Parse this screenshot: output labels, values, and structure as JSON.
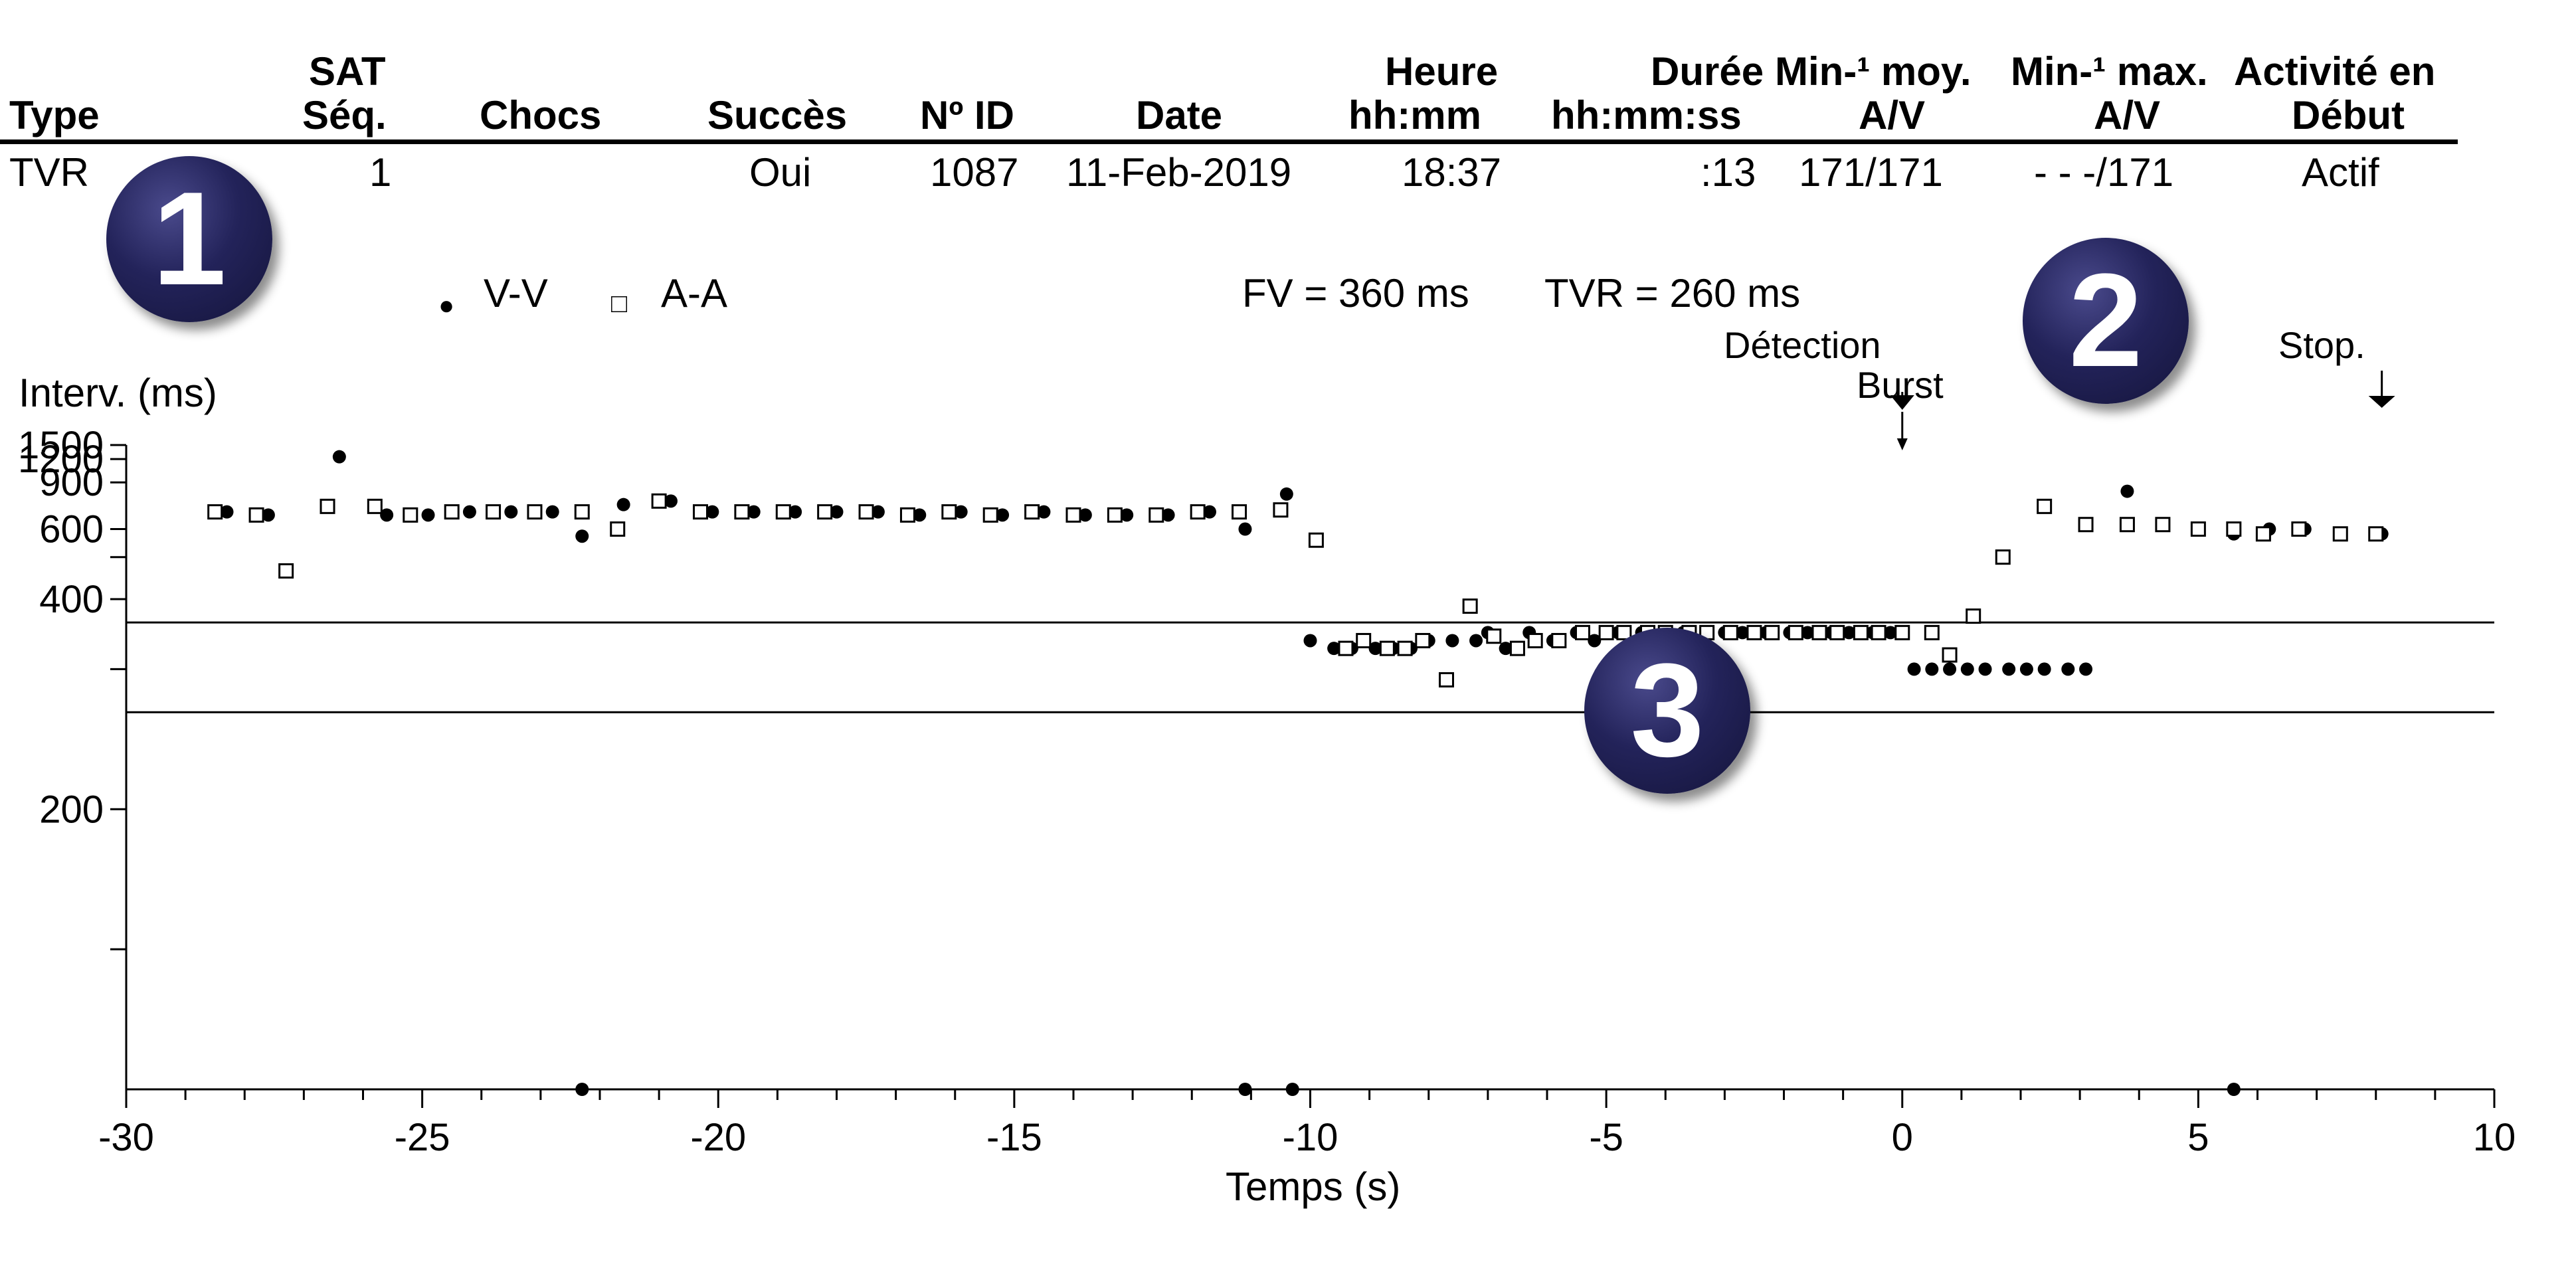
{
  "table": {
    "headers": [
      {
        "line1": "",
        "line2": "Type"
      },
      {
        "line1": "SAT",
        "line2": "Séq."
      },
      {
        "line1": "",
        "line2": "Chocs"
      },
      {
        "line1": "",
        "line2": "Succès"
      },
      {
        "line1": "",
        "line2": "Nº ID"
      },
      {
        "line1": "",
        "line2": "Date"
      },
      {
        "line1": "Heure",
        "line2": "hh:mm"
      },
      {
        "line1": "Durée",
        "line2": "hh:mm:ss"
      },
      {
        "line1": "Min-¹ moy.",
        "line2": "A/V"
      },
      {
        "line1": "Min-¹ max.",
        "line2": "A/V"
      },
      {
        "line1": "Activité en",
        "line2": "Début"
      }
    ],
    "row": [
      "TVR",
      "1",
      "",
      "Oui",
      "1087",
      "11-Feb-2019",
      "18:37",
      ":13",
      "171/171",
      "- - -/171",
      "Actif"
    ]
  },
  "badges": [
    "1",
    "2",
    "3"
  ],
  "legend": {
    "vv": "V-V",
    "aa": "A-A"
  },
  "zones": {
    "fv": "FV = 360 ms",
    "tvr": "TVR = 260 ms"
  },
  "annotations": {
    "detection": "Détection",
    "burst": "Burst",
    "stop": "Stop."
  },
  "colors": {
    "markers": "#000000",
    "badge": "#1e1e50"
  },
  "chart_data": {
    "type": "scatter",
    "title": "",
    "xlabel": "Temps (s)",
    "ylabel": "Interv. (ms)",
    "xlim": [
      -30,
      10
    ],
    "x_ticks": [
      -30,
      -25,
      -20,
      -15,
      -10,
      -5,
      0,
      5,
      10
    ],
    "y_ticks": [
      1500,
      1200,
      900,
      600,
      400,
      200
    ],
    "y_scale": "reciprocal",
    "thresholds_ms": [
      360,
      260
    ],
    "event_markers": [
      {
        "label": "Détection",
        "x": 0
      },
      {
        "label": "Stop.",
        "x": 8.1
      }
    ],
    "series": [
      {
        "name": "V-V",
        "marker": "filled-circle",
        "points": [
          [
            -28.3,
            684
          ],
          [
            -27.6,
            667
          ],
          [
            -26.4,
            1240
          ],
          [
            -25.6,
            667
          ],
          [
            -24.9,
            667
          ],
          [
            -24.2,
            684
          ],
          [
            -23.5,
            684
          ],
          [
            -22.8,
            684
          ],
          [
            -22.3,
            571
          ],
          [
            -21.6,
            727
          ],
          [
            -20.8,
            750
          ],
          [
            -20.1,
            684
          ],
          [
            -19.4,
            684
          ],
          [
            -18.7,
            684
          ],
          [
            -18.0,
            684
          ],
          [
            -17.3,
            684
          ],
          [
            -16.6,
            667
          ],
          [
            -15.9,
            684
          ],
          [
            -15.2,
            667
          ],
          [
            -14.5,
            684
          ],
          [
            -13.8,
            667
          ],
          [
            -13.1,
            667
          ],
          [
            -12.4,
            667
          ],
          [
            -11.7,
            684
          ],
          [
            -11.1,
            600
          ],
          [
            -10.4,
            800
          ],
          [
            -10.0,
            334
          ],
          [
            -9.6,
            324
          ],
          [
            -9.3,
            324
          ],
          [
            -8.9,
            324
          ],
          [
            -8.6,
            324
          ],
          [
            -8.3,
            324
          ],
          [
            -8.0,
            334
          ],
          [
            -7.6,
            334
          ],
          [
            -7.2,
            334
          ],
          [
            -7.0,
            345
          ],
          [
            -6.7,
            324
          ],
          [
            -6.3,
            345
          ],
          [
            -5.9,
            334
          ],
          [
            -5.5,
            345
          ],
          [
            -5.2,
            334
          ],
          [
            -4.8,
            345
          ],
          [
            -4.4,
            345
          ],
          [
            -4.1,
            334
          ],
          [
            -3.7,
            345
          ],
          [
            -3.4,
            334
          ],
          [
            -3.0,
            345
          ],
          [
            -2.7,
            345
          ],
          [
            -2.3,
            345
          ],
          [
            -1.9,
            345
          ],
          [
            -1.6,
            345
          ],
          [
            -1.2,
            345
          ],
          [
            -0.9,
            345
          ],
          [
            -0.5,
            345
          ],
          [
            -0.2,
            345
          ],
          [
            0.2,
            300
          ],
          [
            0.5,
            300
          ],
          [
            0.8,
            300
          ],
          [
            1.1,
            300
          ],
          [
            1.4,
            300
          ],
          [
            1.8,
            300
          ],
          [
            2.1,
            300
          ],
          [
            2.4,
            300
          ],
          [
            2.8,
            300
          ],
          [
            3.1,
            300
          ],
          [
            3.8,
            822
          ],
          [
            4.4,
            620
          ],
          [
            5.0,
            600
          ],
          [
            5.6,
            580
          ],
          [
            6.2,
            600
          ],
          [
            6.8,
            600
          ],
          [
            7.4,
            580
          ],
          [
            8.1,
            580
          ]
        ]
      },
      {
        "name": "A-A",
        "marker": "open-square",
        "points": [
          [
            -28.5,
            684
          ],
          [
            -27.8,
            667
          ],
          [
            -27.3,
            462
          ],
          [
            -26.6,
            716
          ],
          [
            -25.8,
            716
          ],
          [
            -25.2,
            667
          ],
          [
            -24.5,
            684
          ],
          [
            -23.8,
            684
          ],
          [
            -23.1,
            684
          ],
          [
            -22.3,
            684
          ],
          [
            -21.7,
            600
          ],
          [
            -21.0,
            750
          ],
          [
            -20.3,
            684
          ],
          [
            -19.6,
            684
          ],
          [
            -18.9,
            684
          ],
          [
            -18.2,
            684
          ],
          [
            -17.5,
            684
          ],
          [
            -16.8,
            667
          ],
          [
            -16.1,
            684
          ],
          [
            -15.4,
            667
          ],
          [
            -14.7,
            684
          ],
          [
            -14.0,
            667
          ],
          [
            -13.3,
            667
          ],
          [
            -12.6,
            667
          ],
          [
            -11.9,
            684
          ],
          [
            -11.2,
            684
          ],
          [
            -10.5,
            695
          ],
          [
            -9.9,
            556
          ],
          [
            -9.4,
            324
          ],
          [
            -9.1,
            334
          ],
          [
            -8.7,
            324
          ],
          [
            -8.4,
            324
          ],
          [
            -8.1,
            334
          ],
          [
            -7.7,
            289
          ],
          [
            -7.3,
            387
          ],
          [
            -6.9,
            340
          ],
          [
            -6.5,
            324
          ],
          [
            -6.2,
            334
          ],
          [
            -5.8,
            334
          ],
          [
            -5.4,
            345
          ],
          [
            -5.0,
            345
          ],
          [
            -4.7,
            345
          ],
          [
            -4.3,
            345
          ],
          [
            -4.0,
            345
          ],
          [
            -3.6,
            345
          ],
          [
            -3.3,
            345
          ],
          [
            -2.9,
            345
          ],
          [
            -2.5,
            345
          ],
          [
            -2.2,
            345
          ],
          [
            -1.8,
            345
          ],
          [
            -1.4,
            345
          ],
          [
            -1.1,
            345
          ],
          [
            -0.7,
            345
          ],
          [
            -0.4,
            345
          ],
          [
            0.0,
            345
          ],
          [
            0.5,
            345
          ],
          [
            0.8,
            316
          ],
          [
            1.2,
            370
          ],
          [
            1.7,
            500
          ],
          [
            2.4,
            716
          ],
          [
            3.1,
            620
          ],
          [
            3.8,
            620
          ],
          [
            4.4,
            620
          ],
          [
            5.0,
            600
          ],
          [
            5.6,
            600
          ],
          [
            6.1,
            580
          ],
          [
            6.7,
            600
          ],
          [
            7.4,
            580
          ],
          [
            8.0,
            580
          ]
        ]
      }
    ],
    "offscale_points": [
      {
        "series": "V-V",
        "x": -22.3
      },
      {
        "series": "V-V",
        "x": -11.1
      },
      {
        "series": "V-V",
        "x": -10.3
      },
      {
        "series": "V-V",
        "x": 5.6
      }
    ]
  }
}
